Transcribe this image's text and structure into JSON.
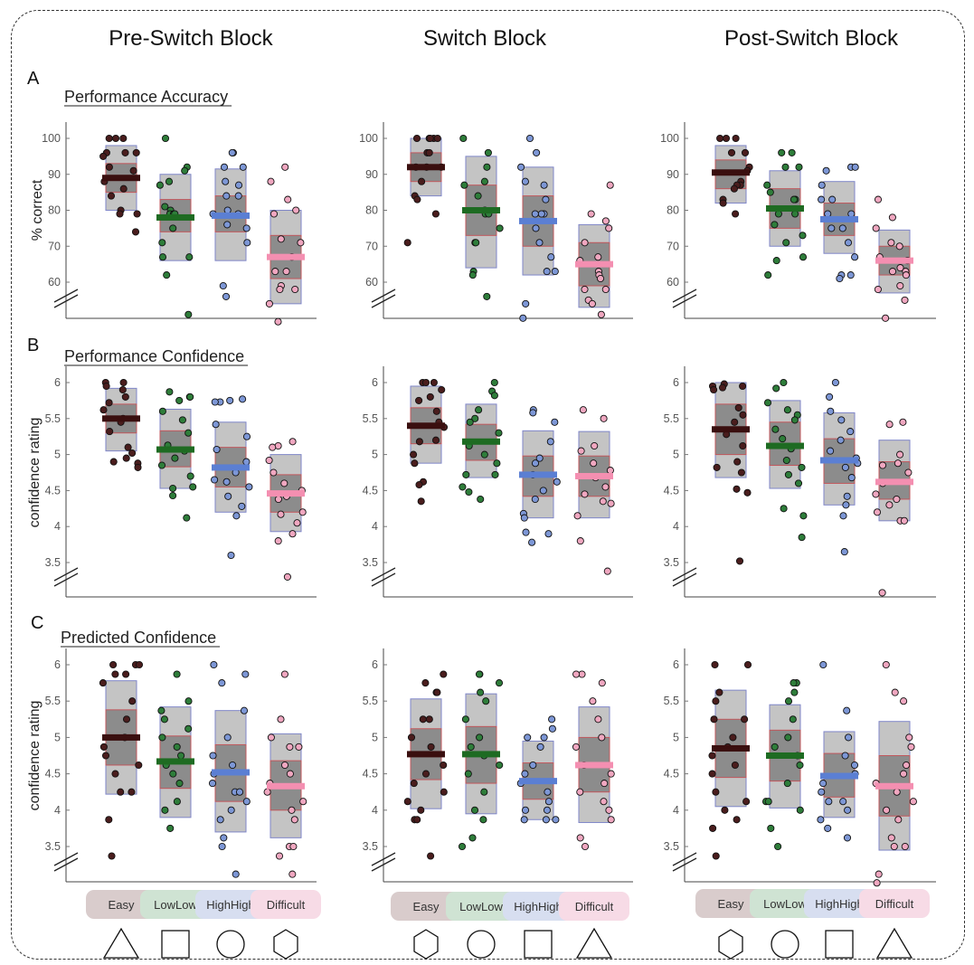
{
  "figure": {
    "column_titles": [
      "Pre-Switch Block",
      "Switch Block",
      "Post-Switch Block"
    ],
    "row_letters": [
      "A",
      "B",
      "C"
    ],
    "section_titles": [
      "Performance Accuracy",
      "Performance Confidence",
      "Predicted Confidence"
    ],
    "condition_labels": [
      "Easy",
      "LowLow",
      "HighHigh",
      "Difficult"
    ],
    "condition_colors": {
      "Easy": {
        "point": "#4a1d1d",
        "mean": "#3a0f0f",
        "label_bg": "#d9cccc"
      },
      "LowLow": {
        "point": "#2e7d3a",
        "mean": "#1e6b22",
        "label_bg": "#cfe3d3"
      },
      "HighHigh": {
        "point": "#7d97d6",
        "mean": "#5b7fd3",
        "label_bg": "#d7def0"
      },
      "Difficult": {
        "point": "#f0a7c0",
        "mean": "#f48fb1",
        "label_bg": "#f7dbe6"
      }
    },
    "shapes": [
      [
        "triangle-icon",
        "square-icon",
        "circle-icon",
        "hexagon-icon"
      ],
      [
        "hexagon-icon",
        "circle-icon",
        "square-icon",
        "triangle-icon"
      ],
      [
        "hexagon-icon",
        "circle-icon",
        "square-icon",
        "triangle-icon"
      ]
    ]
  },
  "chart_data": [
    {
      "type": "scatter",
      "row": "A",
      "section": "Performance Accuracy",
      "column": "Pre-Switch Block",
      "ylabel": "% correct",
      "ylim": [
        55,
        100
      ],
      "yticks": [
        60,
        70,
        80,
        90,
        100
      ],
      "categories": [
        "Easy",
        "LowLow",
        "HighHigh",
        "Difficult"
      ],
      "mean": [
        89,
        78,
        78.5,
        67
      ],
      "box_low": [
        80,
        66,
        66,
        54
      ],
      "box_high": [
        98,
        90,
        91.5,
        80
      ],
      "inner_low": [
        85,
        74,
        74,
        61
      ],
      "inner_high": [
        93,
        83,
        84,
        73
      ],
      "points": [
        [
          100,
          100,
          100,
          96,
          96,
          96,
          95,
          92,
          91,
          88,
          86,
          84,
          80,
          79,
          79,
          74
        ],
        [
          100,
          92,
          91,
          88,
          87,
          81,
          80,
          79,
          79,
          79,
          75,
          71,
          67,
          67,
          62,
          51
        ],
        [
          96,
          96,
          92,
          92,
          88,
          87,
          84,
          84,
          80,
          79,
          79,
          76,
          75,
          71,
          59,
          56
        ],
        [
          92,
          88,
          83,
          80,
          79,
          72,
          71,
          67,
          63,
          63,
          59,
          58,
          58,
          54,
          49
        ]
      ]
    },
    {
      "type": "scatter",
      "row": "A",
      "section": "Performance Accuracy",
      "column": "Switch Block",
      "ylabel": "",
      "ylim": [
        55,
        100
      ],
      "yticks": [
        60,
        70,
        80,
        90,
        100
      ],
      "categories": [
        "Easy",
        "LowLow",
        "HighHigh",
        "Difficult"
      ],
      "mean": [
        92,
        80,
        77,
        65
      ],
      "box_low": [
        84,
        64,
        62,
        53
      ],
      "box_high": [
        100,
        95,
        92,
        76
      ],
      "inner_low": [
        88,
        73,
        70,
        59
      ],
      "inner_high": [
        96,
        87,
        84,
        71
      ],
      "points": [
        [
          100,
          100,
          100,
          100,
          100,
          96,
          96,
          92,
          92,
          92,
          88,
          84,
          83,
          79,
          71
        ],
        [
          100,
          96,
          92,
          88,
          87,
          84,
          80,
          79,
          79,
          75,
          71,
          71,
          63,
          62,
          56
        ],
        [
          100,
          96,
          92,
          88,
          87,
          83,
          79,
          79,
          79,
          75,
          71,
          67,
          63,
          63,
          54,
          50
        ],
        [
          87,
          79,
          77,
          75,
          71,
          67,
          66,
          63,
          62,
          61,
          58,
          58,
          55,
          54,
          51
        ]
      ]
    },
    {
      "type": "scatter",
      "row": "A",
      "section": "Performance Accuracy",
      "column": "Post-Switch Block",
      "ylabel": "",
      "ylim": [
        55,
        100
      ],
      "yticks": [
        60,
        70,
        80,
        90,
        100
      ],
      "categories": [
        "Easy",
        "LowLow",
        "HighHigh",
        "Difficult"
      ],
      "mean": [
        90.5,
        80.5,
        77.5,
        66
      ],
      "box_low": [
        82,
        70,
        68,
        57
      ],
      "box_high": [
        98,
        91,
        88,
        74.5
      ],
      "inner_low": [
        86,
        75,
        73,
        62
      ],
      "inner_high": [
        94,
        86,
        82,
        70
      ],
      "points": [
        [
          100,
          100,
          100,
          96,
          96,
          92,
          91,
          88,
          87,
          87,
          86,
          83,
          82,
          79
        ],
        [
          96,
          96,
          92,
          92,
          87,
          85,
          83,
          83,
          79,
          79,
          76,
          73,
          71,
          67,
          66,
          62
        ],
        [
          92,
          92,
          91,
          87,
          83,
          83,
          79,
          79,
          75,
          75,
          71,
          67,
          62,
          62,
          61
        ],
        [
          83,
          78,
          75,
          71,
          70,
          67,
          66,
          66,
          64,
          63,
          63,
          62,
          59,
          58,
          55,
          50
        ]
      ]
    },
    {
      "type": "scatter",
      "row": "B",
      "section": "Performance Confidence",
      "column": "Pre-Switch Block",
      "ylabel": "confidence rating",
      "ylim": [
        3.3,
        6.0
      ],
      "yticks": [
        3.5,
        4,
        4.5,
        5,
        5.5,
        6
      ],
      "categories": [
        "Easy",
        "LowLow",
        "HighHigh",
        "Difficult"
      ],
      "mean": [
        5.5,
        5.07,
        4.82,
        4.46
      ],
      "box_low": [
        5.05,
        4.53,
        4.2,
        3.93
      ],
      "box_high": [
        5.92,
        5.63,
        5.45,
        5.0
      ],
      "inner_low": [
        5.3,
        4.83,
        4.55,
        4.2
      ],
      "inner_high": [
        5.7,
        5.33,
        5.1,
        4.72
      ],
      "points": [
        [
          6.0,
          6.0,
          5.95,
          5.9,
          5.8,
          5.72,
          5.62,
          5.5,
          5.45,
          5.32,
          5.1,
          5.02,
          4.95,
          4.9,
          4.88,
          4.82
        ],
        [
          5.87,
          5.8,
          5.8,
          5.75,
          5.6,
          5.48,
          5.3,
          5.13,
          5.05,
          4.95,
          4.85,
          4.7,
          4.55,
          4.53,
          4.43,
          4.12
        ],
        [
          5.77,
          5.75,
          5.73,
          5.73,
          5.42,
          5.25,
          5.07,
          4.9,
          4.75,
          4.65,
          4.62,
          4.55,
          4.42,
          4.28,
          4.15,
          3.6
        ],
        [
          5.18,
          5.12,
          5.1,
          4.92,
          4.75,
          4.6,
          4.5,
          4.42,
          4.38,
          4.2,
          4.17,
          4.05,
          3.9,
          3.8,
          3.3
        ]
      ]
    },
    {
      "type": "scatter",
      "row": "B",
      "section": "Performance Confidence",
      "column": "Switch Block",
      "ylabel": "",
      "ylim": [
        3.3,
        6.0
      ],
      "yticks": [
        3.5,
        4,
        4.5,
        5,
        5.5,
        6
      ],
      "categories": [
        "Easy",
        "LowLow",
        "HighHigh",
        "Difficult"
      ],
      "mean": [
        5.4,
        5.18,
        4.72,
        4.7
      ],
      "box_low": [
        4.88,
        4.68,
        4.12,
        4.12
      ],
      "box_high": [
        5.95,
        5.7,
        5.33,
        5.32
      ],
      "inner_low": [
        5.15,
        4.92,
        4.42,
        4.42
      ],
      "inner_high": [
        5.65,
        5.42,
        4.98,
        4.98
      ],
      "points": [
        [
          6.0,
          6.0,
          6.0,
          5.9,
          5.8,
          5.75,
          5.6,
          5.45,
          5.38,
          5.2,
          5.18,
          5.0,
          4.88,
          4.62,
          4.58,
          4.35
        ],
        [
          6.0,
          5.88,
          5.82,
          5.62,
          5.5,
          5.45,
          5.3,
          5.12,
          5.0,
          4.88,
          4.72,
          4.72,
          4.55,
          4.48,
          4.38
        ],
        [
          5.62,
          5.58,
          5.45,
          5.18,
          4.95,
          4.88,
          4.72,
          4.62,
          4.5,
          4.38,
          4.18,
          4.12,
          3.92,
          3.9,
          3.78
        ],
        [
          5.62,
          5.5,
          5.12,
          5.05,
          4.88,
          4.78,
          4.68,
          4.55,
          4.45,
          4.35,
          4.32,
          4.15,
          3.8,
          3.38
        ]
      ]
    },
    {
      "type": "scatter",
      "row": "B",
      "section": "Performance Confidence",
      "column": "Post-Switch Block",
      "ylabel": "",
      "ylim": [
        3.3,
        6.0
      ],
      "yticks": [
        3.5,
        4,
        4.5,
        5,
        5.5,
        6
      ],
      "categories": [
        "Easy",
        "LowLow",
        "HighHigh",
        "Difficult"
      ],
      "mean": [
        5.35,
        5.12,
        4.92,
        4.62
      ],
      "box_low": [
        4.68,
        4.53,
        4.3,
        4.08
      ],
      "box_high": [
        6.0,
        5.75,
        5.58,
        5.2
      ],
      "inner_low": [
        5.0,
        4.85,
        4.6,
        4.38
      ],
      "inner_high": [
        5.7,
        5.45,
        5.22,
        4.9
      ],
      "points": [
        [
          5.98,
          5.95,
          5.95,
          5.93,
          5.9,
          5.65,
          5.55,
          5.45,
          5.28,
          5.12,
          4.9,
          4.82,
          4.75,
          4.52,
          4.47,
          3.52
        ],
        [
          6.0,
          5.92,
          5.72,
          5.62,
          5.55,
          5.48,
          5.35,
          5.22,
          5.08,
          4.92,
          4.82,
          4.72,
          4.6,
          4.25,
          4.15,
          3.85
        ],
        [
          6.0,
          5.8,
          5.6,
          5.48,
          5.32,
          5.2,
          5.05,
          4.95,
          4.88,
          4.82,
          4.68,
          4.42,
          4.3,
          4.15,
          3.65
        ],
        [
          5.45,
          5.42,
          5.0,
          4.88,
          4.85,
          4.75,
          4.6,
          4.45,
          4.38,
          4.3,
          4.2,
          4.08,
          4.08,
          3.08
        ]
      ]
    },
    {
      "type": "scatter",
      "row": "C",
      "section": "Predicted Confidence",
      "column": "Pre-Switch Block",
      "ylabel": "confidence rating",
      "ylim": [
        3.1,
        6.0
      ],
      "yticks": [
        3.5,
        4,
        4.5,
        5,
        5.5,
        6
      ],
      "categories": [
        "Easy",
        "LowLow",
        "HighHigh",
        "Difficult"
      ],
      "mean": [
        5.0,
        4.67,
        4.52,
        4.33
      ],
      "box_low": [
        4.22,
        3.9,
        3.7,
        3.62
      ],
      "box_high": [
        5.78,
        5.42,
        5.37,
        5.05
      ],
      "inner_low": [
        4.62,
        4.3,
        4.12,
        4.0
      ],
      "inner_high": [
        5.38,
        5.02,
        4.9,
        4.68
      ],
      "points": [
        [
          6.0,
          6.0,
          6.0,
          5.87,
          5.87,
          5.75,
          5.5,
          5.25,
          5.0,
          4.87,
          4.75,
          4.62,
          4.5,
          4.25,
          4.25,
          3.87,
          3.37
        ],
        [
          5.87,
          5.5,
          5.37,
          5.25,
          5.12,
          5.0,
          4.87,
          4.75,
          4.62,
          4.5,
          4.37,
          4.12,
          4.0,
          3.75
        ],
        [
          6.0,
          5.87,
          5.75,
          5.37,
          5.0,
          4.75,
          4.62,
          4.5,
          4.37,
          4.25,
          4.25,
          4.12,
          4.0,
          3.87,
          3.62,
          3.5,
          3.12
        ],
        [
          5.87,
          5.25,
          5.0,
          4.87,
          4.87,
          4.62,
          4.5,
          4.37,
          4.25,
          4.12,
          4.0,
          3.87,
          3.5,
          3.5,
          3.37,
          3.12
        ]
      ]
    },
    {
      "type": "scatter",
      "row": "C",
      "section": "Predicted Confidence",
      "column": "Switch Block",
      "ylabel": "",
      "ylim": [
        3.1,
        6.0
      ],
      "yticks": [
        3.5,
        4,
        4.5,
        5,
        5.5,
        6
      ],
      "categories": [
        "Easy",
        "LowLow",
        "HighHigh",
        "Difficult"
      ],
      "mean": [
        4.77,
        4.77,
        4.4,
        4.62
      ],
      "box_low": [
        4.02,
        3.95,
        3.87,
        3.83
      ],
      "box_high": [
        5.53,
        5.6,
        4.95,
        5.42
      ],
      "inner_low": [
        4.42,
        4.37,
        4.15,
        4.25
      ],
      "inner_high": [
        5.12,
        5.15,
        4.65,
        5.0
      ],
      "points": [
        [
          5.87,
          5.75,
          5.62,
          5.62,
          5.25,
          5.25,
          5.0,
          4.87,
          4.62,
          4.5,
          4.37,
          4.25,
          4.12,
          4.0,
          3.87,
          3.87,
          3.37
        ],
        [
          5.87,
          5.87,
          5.75,
          5.62,
          5.5,
          5.25,
          5.0,
          4.87,
          4.75,
          4.62,
          4.5,
          4.25,
          4.0,
          3.87,
          3.62,
          3.5
        ],
        [
          5.25,
          5.12,
          5.0,
          5.0,
          4.87,
          4.62,
          4.5,
          4.37,
          4.25,
          4.12,
          4.0,
          4.0,
          3.87,
          3.87,
          3.87
        ],
        [
          5.87,
          5.87,
          5.75,
          5.5,
          5.25,
          5.0,
          4.87,
          4.62,
          4.5,
          4.37,
          4.25,
          4.12,
          4.0,
          3.87,
          3.62,
          3.5
        ]
      ]
    },
    {
      "type": "scatter",
      "row": "C",
      "section": "Predicted Confidence",
      "column": "Post-Switch Block",
      "ylabel": "",
      "ylim": [
        3.1,
        6.0
      ],
      "yticks": [
        3.5,
        4,
        4.5,
        5,
        5.5,
        6
      ],
      "categories": [
        "Easy",
        "LowLow",
        "HighHigh",
        "Difficult"
      ],
      "mean": [
        4.85,
        4.75,
        4.47,
        4.33
      ],
      "box_low": [
        4.05,
        4.03,
        3.9,
        3.45
      ],
      "box_high": [
        5.65,
        5.45,
        5.08,
        5.22
      ],
      "inner_low": [
        4.45,
        4.4,
        4.18,
        3.92
      ],
      "inner_high": [
        5.25,
        5.1,
        4.78,
        4.75
      ],
      "points": [
        [
          6.0,
          6.0,
          5.62,
          5.5,
          5.25,
          5.25,
          5.0,
          4.87,
          4.75,
          4.62,
          4.5,
          4.25,
          4.12,
          4.0,
          3.87,
          3.75,
          3.37
        ],
        [
          5.75,
          5.75,
          5.62,
          5.5,
          5.25,
          5.0,
          4.87,
          4.75,
          4.62,
          4.37,
          4.12,
          4.12,
          4.0,
          3.75,
          3.5
        ],
        [
          6.0,
          5.37,
          5.0,
          4.75,
          4.62,
          4.5,
          4.37,
          4.25,
          4.12,
          4.12,
          4.0,
          3.87,
          3.75,
          3.62
        ],
        [
          6.0,
          5.62,
          5.5,
          5.0,
          4.87,
          4.62,
          4.5,
          4.37,
          4.25,
          4.12,
          4.0,
          3.87,
          3.62,
          3.5,
          3.5,
          3.12,
          3.0
        ]
      ]
    }
  ]
}
